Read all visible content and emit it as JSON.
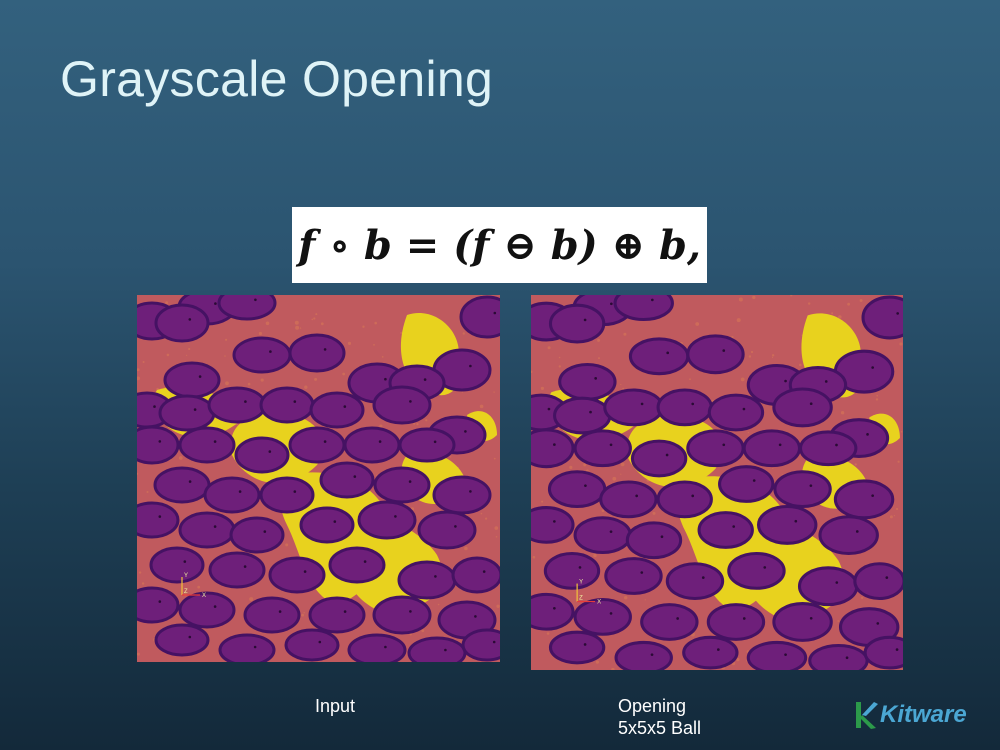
{
  "slide": {
    "title": "Grayscale Opening",
    "formula": "f ∘ b = (f ⊖ b) ⊕ b,"
  },
  "panels": [
    {
      "caption": "Input"
    },
    {
      "caption_line1": "Opening",
      "caption_line2": "5x5x5 Ball"
    }
  ],
  "axis_labels": {
    "y": "Y",
    "z": "Z",
    "x": "X"
  },
  "logo": {
    "text": "Kitware"
  },
  "colors": {
    "background_top": "#33617e",
    "background_bottom": "#13293a",
    "title_text": "#dff3f7",
    "cell_fill": "#6e1f7a",
    "cell_rim": "#451263",
    "matrix": "#c05a5e",
    "bright_region": "#e8d21e",
    "logo_accent": "#4ba7d3"
  }
}
